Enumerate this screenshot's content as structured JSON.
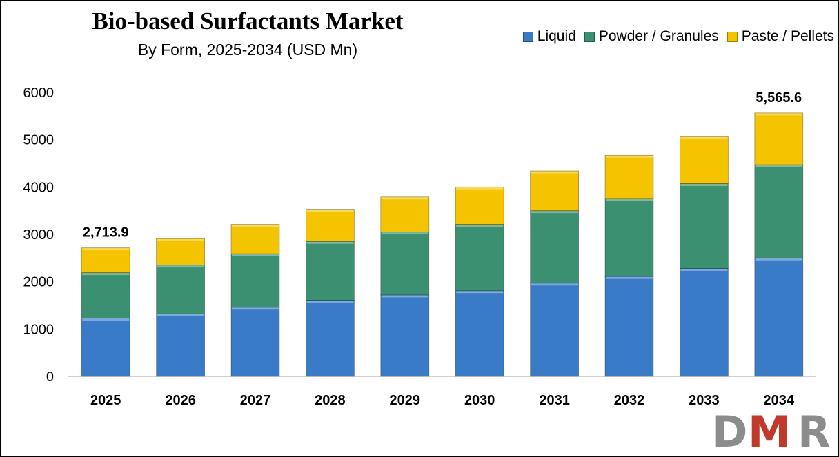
{
  "title": "Bio-based Surfactants Market",
  "subtitle": "By Form, 2025-2034 (USD Mn)",
  "logo_text": "DMR",
  "colors": {
    "liquid": "#3a7bc8",
    "powder": "#3a9070",
    "paste": "#f5c400",
    "axis": "#bfbfbf",
    "logo_gray": "#8c8c8c",
    "logo_red": "#c0392b"
  },
  "chart_data": {
    "type": "bar",
    "stacked": true,
    "categories": [
      "2025",
      "2026",
      "2027",
      "2028",
      "2029",
      "2030",
      "2031",
      "2032",
      "2033",
      "2034"
    ],
    "series": [
      {
        "name": "Liquid",
        "color": "#3a7bc8",
        "values": [
          1230,
          1320,
          1460,
          1610,
          1720,
          1810,
          1970,
          2110,
          2280,
          2500
        ]
      },
      {
        "name": "Powder / Granules",
        "color": "#3a9070",
        "values": [
          960,
          1030,
          1130,
          1240,
          1330,
          1400,
          1530,
          1650,
          1790,
          1970
        ]
      },
      {
        "name": "Paste / Pellets",
        "color": "#f5c400",
        "values": [
          523.9,
          560,
          620,
          680,
          740,
          790,
          840,
          910,
          990,
          1095.6
        ]
      }
    ],
    "totals_shown": {
      "2025": "2,713.9",
      "2034": "5,565.6"
    },
    "yticks": [
      "0",
      "1000",
      "2000",
      "3000",
      "4000",
      "5000",
      "6000"
    ],
    "ylim": [
      0,
      6000
    ],
    "xlabel": "",
    "ylabel": "",
    "grid": false,
    "legend_position": "top-right"
  }
}
